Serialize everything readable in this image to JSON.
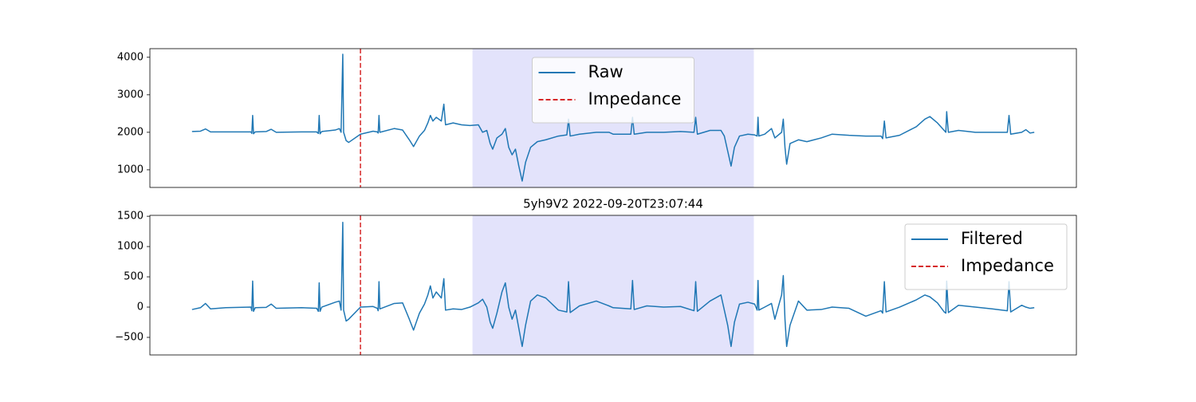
{
  "chart_data": [
    {
      "type": "line",
      "legend": "upper center",
      "xlim": [
        -50,
        1050
      ],
      "ylim": [
        530,
        4230
      ],
      "yticks": [
        1000,
        2000,
        3000,
        4000
      ],
      "span": {
        "x": [
          333,
          667
        ],
        "color": "#e3e3fb"
      },
      "vlines": [
        {
          "name": "Impedance",
          "x": 200,
          "color": "#d62728",
          "style": "dashed"
        }
      ],
      "x": [
        0,
        10,
        16,
        22,
        40,
        70,
        71,
        72,
        73,
        75,
        88,
        94,
        100,
        130,
        148,
        150,
        151,
        152,
        154,
        170,
        175,
        177,
        179,
        180,
        183,
        186,
        200,
        215,
        220,
        221,
        222,
        223,
        240,
        250,
        258,
        263,
        270,
        276,
        280,
        283,
        286,
        290,
        296,
        299,
        301,
        310,
        320,
        330,
        340,
        345,
        350,
        354,
        357,
        362,
        368,
        372,
        376,
        380,
        384,
        388,
        392,
        396,
        402,
        410,
        420,
        435,
        445,
        447,
        449,
        460,
        480,
        495,
        500,
        521,
        523,
        525,
        540,
        560,
        580,
        596,
        598,
        600,
        615,
        628,
        632,
        636,
        640,
        644,
        650,
        660,
        668,
        671,
        672,
        673,
        680,
        688,
        692,
        700,
        702,
        704,
        706,
        710,
        720,
        730,
        747,
        760,
        780,
        800,
        818,
        820,
        822,
        824,
        840,
        860,
        870,
        876,
        885,
        893,
        895,
        896,
        898,
        910,
        930,
        950,
        968,
        970,
        972,
        985,
        990,
        995,
        1000
      ],
      "series": [
        {
          "name": "Raw",
          "color": "#1f77b4",
          "values": [
            2020,
            2030,
            2090,
            2010,
            2010,
            2010,
            1970,
            2450,
            1960,
            2010,
            2020,
            2080,
            2000,
            2010,
            2010,
            1970,
            2450,
            1960,
            2020,
            2060,
            2100,
            2000,
            4080,
            2000,
            1780,
            1730,
            1950,
            2030,
            2010,
            1980,
            2450,
            2000,
            2100,
            2060,
            1800,
            1620,
            1900,
            2050,
            2250,
            2450,
            2300,
            2400,
            2300,
            2750,
            2200,
            2250,
            2200,
            2180,
            2200,
            2000,
            2050,
            1700,
            1550,
            1850,
            1950,
            2100,
            1600,
            1400,
            1550,
            1100,
            700,
            1200,
            1600,
            1750,
            1800,
            1900,
            1930,
            2350,
            1900,
            1950,
            2000,
            2000,
            1950,
            1950,
            2400,
            1950,
            2000,
            2000,
            2020,
            2000,
            2400,
            1950,
            2050,
            2050,
            1900,
            1500,
            1100,
            1600,
            1900,
            1950,
            1930,
            1900,
            2400,
            1900,
            1950,
            2100,
            1850,
            2000,
            2350,
            1600,
            1150,
            1700,
            1800,
            1750,
            1850,
            1950,
            1920,
            1900,
            1900,
            1830,
            2300,
            1850,
            1920,
            2150,
            2350,
            2420,
            2250,
            2050,
            2000,
            2550,
            2000,
            2050,
            2000,
            2000,
            2000,
            2450,
            1950,
            2000,
            2070,
            1980,
            2000
          ]
        }
      ]
    },
    {
      "type": "line",
      "legend": "upper right",
      "title": "5yh9V2 2022-09-20T23:07:44",
      "xlim": [
        -50,
        1050
      ],
      "ylim": [
        -790,
        1515
      ],
      "yticks": [
        {
          "value": -500,
          "label": "−500"
        },
        0,
        500,
        1000,
        1500
      ],
      "span": {
        "x": [
          333,
          667
        ],
        "color": "#e3e3fb"
      },
      "vlines": [
        {
          "name": "Impedance",
          "x": 200,
          "color": "#d62728",
          "style": "dashed"
        }
      ],
      "x": [
        0,
        10,
        16,
        22,
        40,
        70,
        71,
        72,
        73,
        75,
        88,
        94,
        100,
        130,
        148,
        150,
        151,
        152,
        154,
        170,
        175,
        177,
        179,
        180,
        183,
        186,
        200,
        215,
        220,
        221,
        222,
        223,
        240,
        250,
        258,
        263,
        270,
        276,
        280,
        283,
        286,
        290,
        296,
        299,
        301,
        310,
        320,
        330,
        340,
        345,
        350,
        354,
        357,
        362,
        368,
        372,
        376,
        380,
        384,
        388,
        392,
        396,
        402,
        410,
        420,
        435,
        445,
        447,
        449,
        460,
        480,
        495,
        500,
        521,
        523,
        525,
        540,
        560,
        580,
        596,
        598,
        600,
        615,
        628,
        632,
        636,
        640,
        644,
        650,
        660,
        668,
        671,
        672,
        673,
        680,
        688,
        692,
        700,
        702,
        704,
        706,
        710,
        720,
        730,
        747,
        760,
        780,
        800,
        818,
        820,
        822,
        824,
        840,
        860,
        870,
        876,
        885,
        893,
        895,
        896,
        898,
        910,
        930,
        950,
        968,
        970,
        972,
        985,
        990,
        995,
        1000
      ],
      "series": [
        {
          "name": "Filtered",
          "color": "#1f77b4",
          "values": [
            -40,
            -10,
            60,
            -30,
            -10,
            0,
            -60,
            430,
            -70,
            -10,
            -5,
            50,
            -20,
            -10,
            -20,
            -70,
            400,
            -70,
            0,
            80,
            100,
            -50,
            1400,
            -50,
            -230,
            -200,
            0,
            10,
            -20,
            -60,
            420,
            -30,
            60,
            70,
            -200,
            -380,
            -100,
            50,
            200,
            350,
            150,
            250,
            150,
            470,
            -50,
            -30,
            -40,
            0,
            70,
            130,
            0,
            -250,
            -350,
            -100,
            250,
            400,
            0,
            -200,
            -50,
            -350,
            -650,
            -300,
            100,
            200,
            150,
            -50,
            -80,
            420,
            -90,
            20,
            100,
            20,
            -10,
            -30,
            440,
            -40,
            20,
            0,
            10,
            -60,
            420,
            -70,
            100,
            200,
            -50,
            -300,
            -650,
            -250,
            50,
            80,
            50,
            -50,
            440,
            -50,
            0,
            60,
            -200,
            200,
            520,
            -200,
            -650,
            -300,
            100,
            -50,
            -40,
            0,
            -20,
            -150,
            -60,
            -100,
            420,
            -80,
            0,
            120,
            200,
            170,
            70,
            -80,
            -100,
            430,
            -90,
            30,
            0,
            -30,
            -60,
            420,
            -80,
            30,
            0,
            -20,
            -10
          ]
        }
      ]
    }
  ]
}
